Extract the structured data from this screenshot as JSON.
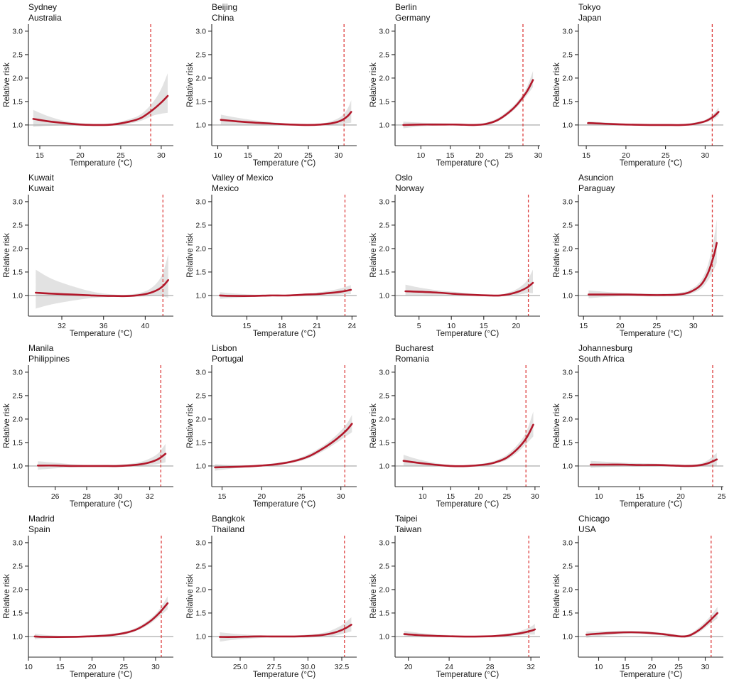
{
  "figure": {
    "ylabel": "Relative risk",
    "xlabel": "Temperature (°C)",
    "ytick_values": [
      1.0,
      1.5,
      2.0,
      2.5,
      3.0
    ],
    "ytick_labels": [
      "1.0",
      "1.5",
      "2.0",
      "2.5",
      "3.0"
    ],
    "ylim": [
      0.56,
      3.15
    ],
    "grid": "off",
    "legend": "none",
    "colors": {
      "curve": "#b2182b",
      "band": "#bfbfbf",
      "dashed_threshold": "#dd4040",
      "reference_line": "#b3b3b3",
      "axis": "#2b2b2b",
      "text": "#1a1a1a"
    }
  },
  "chart_data": [
    {
      "type": "line",
      "city": "Sydney",
      "country": "Australia",
      "xlabel": "Temperature (°C)",
      "ylabel": "Relative risk",
      "xlim": [
        13.6,
        31.5
      ],
      "xtick_values": [
        15,
        20,
        25,
        30
      ],
      "xtick_labels": [
        "15",
        "20",
        "25",
        "30"
      ],
      "dashed_line_x": 28.7,
      "x": [
        14.2,
        16,
        18,
        20,
        22,
        24,
        26,
        27.5,
        29,
        30,
        30.8
      ],
      "relative_risk": [
        1.13,
        1.08,
        1.04,
        1.01,
        1.0,
        1.01,
        1.07,
        1.15,
        1.33,
        1.48,
        1.62
      ],
      "ci_low": [
        0.96,
        0.98,
        0.99,
        0.98,
        0.98,
        0.99,
        1.03,
        1.09,
        1.2,
        1.24,
        1.26
      ],
      "ci_high": [
        1.32,
        1.19,
        1.09,
        1.04,
        1.02,
        1.04,
        1.12,
        1.23,
        1.49,
        1.77,
        2.1
      ]
    },
    {
      "type": "line",
      "city": "Beijing",
      "country": "China",
      "xlabel": "Temperature (°C)",
      "ylabel": "Relative risk",
      "xlim": [
        9.0,
        33.0
      ],
      "xtick_values": [
        10,
        15,
        20,
        25,
        30
      ],
      "xtick_labels": [
        "10",
        "15",
        "20",
        "25",
        "30"
      ],
      "dashed_line_x": 30.9,
      "x": [
        10.5,
        13,
        16,
        19,
        22,
        25,
        27,
        29,
        30.5,
        31.5,
        32.1
      ],
      "relative_risk": [
        1.11,
        1.08,
        1.05,
        1.03,
        1.01,
        1.0,
        1.01,
        1.04,
        1.1,
        1.19,
        1.28
      ],
      "ci_low": [
        1.01,
        1.01,
        1.01,
        1.0,
        0.99,
        0.99,
        0.99,
        1.0,
        1.02,
        1.04,
        1.05
      ],
      "ci_high": [
        1.22,
        1.16,
        1.1,
        1.06,
        1.03,
        1.02,
        1.03,
        1.09,
        1.19,
        1.35,
        1.53
      ]
    },
    {
      "type": "line",
      "city": "Berlin",
      "country": "Germany",
      "xlabel": "Temperature (°C)",
      "ylabel": "Relative risk",
      "xlim": [
        5.6,
        30.3
      ],
      "xtick_values": [
        10,
        15,
        20,
        25,
        30
      ],
      "xtick_labels": [
        "10",
        "15",
        "20",
        "25",
        "30"
      ],
      "dashed_line_x": 27.4,
      "x": [
        7,
        10,
        13,
        16,
        19,
        21,
        23,
        25,
        26.5,
        28,
        29.1
      ],
      "relative_risk": [
        1.0,
        1.01,
        1.01,
        1.01,
        1.0,
        1.02,
        1.1,
        1.27,
        1.45,
        1.7,
        1.96
      ],
      "ci_low": [
        0.93,
        0.97,
        0.99,
        0.99,
        0.98,
        1.0,
        1.07,
        1.23,
        1.4,
        1.62,
        1.81
      ],
      "ci_high": [
        1.07,
        1.05,
        1.04,
        1.03,
        1.02,
        1.05,
        1.14,
        1.32,
        1.51,
        1.79,
        2.15
      ]
    },
    {
      "type": "line",
      "city": "Tokyo",
      "country": "Japan",
      "xlabel": "Temperature (°C)",
      "ylabel": "Relative risk",
      "xlim": [
        14.0,
        32.3
      ],
      "xtick_values": [
        15,
        20,
        25,
        30
      ],
      "xtick_labels": [
        "15",
        "20",
        "25",
        "30"
      ],
      "dashed_line_x": 30.9,
      "x": [
        15.2,
        17,
        20,
        23,
        25,
        27,
        28.5,
        30,
        31,
        31.7
      ],
      "relative_risk": [
        1.04,
        1.03,
        1.01,
        1.0,
        1.0,
        1.0,
        1.02,
        1.08,
        1.17,
        1.28
      ],
      "ci_low": [
        1.01,
        1.0,
        0.99,
        0.99,
        0.98,
        0.99,
        1.0,
        1.05,
        1.12,
        1.2
      ],
      "ci_high": [
        1.08,
        1.06,
        1.03,
        1.02,
        1.01,
        1.02,
        1.05,
        1.11,
        1.23,
        1.37
      ]
    },
    {
      "type": "line",
      "city": "Kuwait",
      "country": "Kuwait",
      "xlabel": "Temperature (°C)",
      "ylabel": "Relative risk",
      "xlim": [
        28.8,
        42.7
      ],
      "xtick_values": [
        32,
        36,
        40
      ],
      "xtick_labels": [
        "32",
        "36",
        "40"
      ],
      "dashed_line_x": 41.7,
      "x": [
        29.5,
        31,
        33,
        35,
        37,
        38.5,
        40,
        41,
        41.7,
        42.2
      ],
      "relative_risk": [
        1.06,
        1.04,
        1.02,
        1.0,
        0.99,
        0.99,
        1.03,
        1.1,
        1.2,
        1.33
      ],
      "ci_low": [
        0.72,
        0.81,
        0.89,
        0.95,
        0.97,
        0.97,
        0.98,
        0.99,
        0.98,
        0.95
      ],
      "ci_high": [
        1.55,
        1.36,
        1.2,
        1.08,
        1.02,
        1.02,
        1.09,
        1.24,
        1.48,
        1.88
      ]
    },
    {
      "type": "line",
      "city": "Valley of Mexico",
      "country": "Mexico",
      "xlabel": "Temperature (°C)",
      "ylabel": "Relative risk",
      "xlim": [
        12.0,
        24.4
      ],
      "xtick_values": [
        15,
        18,
        21,
        24
      ],
      "xtick_labels": [
        "15",
        "18",
        "21",
        "24"
      ],
      "dashed_line_x": 23.4,
      "x": [
        12.7,
        14,
        15.5,
        17,
        18.5,
        20,
        21,
        22,
        23,
        23.9
      ],
      "relative_risk": [
        1.0,
        0.99,
        0.99,
        1.0,
        1.0,
        1.02,
        1.03,
        1.05,
        1.08,
        1.12
      ],
      "ci_low": [
        0.93,
        0.95,
        0.97,
        0.98,
        0.99,
        0.99,
        1.0,
        1.01,
        1.02,
        1.03
      ],
      "ci_high": [
        1.07,
        1.04,
        1.02,
        1.02,
        1.02,
        1.04,
        1.06,
        1.1,
        1.15,
        1.22
      ]
    },
    {
      "type": "line",
      "city": "Oslo",
      "country": "Norway",
      "xlabel": "Temperature (°C)",
      "ylabel": "Relative risk",
      "xlim": [
        1.3,
        23.7
      ],
      "xtick_values": [
        5,
        10,
        15,
        20
      ],
      "xtick_labels": [
        "5",
        "10",
        "15",
        "20"
      ],
      "dashed_line_x": 21.9,
      "x": [
        2.9,
        5,
        8,
        11,
        14,
        16,
        17.5,
        19,
        20.5,
        21.7,
        22.6
      ],
      "relative_risk": [
        1.09,
        1.08,
        1.06,
        1.03,
        1.01,
        1.0,
        1.0,
        1.03,
        1.09,
        1.17,
        1.27
      ],
      "ci_low": [
        0.99,
        1.0,
        1.01,
        1.0,
        0.99,
        0.98,
        0.98,
        1.0,
        1.02,
        1.05,
        1.05
      ],
      "ci_high": [
        1.23,
        1.17,
        1.11,
        1.07,
        1.03,
        1.02,
        1.02,
        1.07,
        1.17,
        1.32,
        1.55
      ]
    },
    {
      "type": "line",
      "city": "Asuncion",
      "country": "Paraguay",
      "xlabel": "Temperature (°C)",
      "ylabel": "Relative risk",
      "xlim": [
        14.3,
        34.1
      ],
      "xtick_values": [
        15,
        20,
        25,
        30
      ],
      "xtick_labels": [
        "15",
        "20",
        "25",
        "30"
      ],
      "dashed_line_x": 32.6,
      "x": [
        15.7,
        18,
        21,
        24,
        26,
        28,
        29.5,
        31,
        32,
        32.8,
        33.2
      ],
      "relative_risk": [
        1.02,
        1.02,
        1.02,
        1.01,
        1.01,
        1.02,
        1.07,
        1.22,
        1.48,
        1.85,
        2.12
      ],
      "ci_low": [
        0.94,
        0.97,
        0.99,
        0.98,
        0.98,
        0.99,
        1.03,
        1.14,
        1.32,
        1.55,
        1.7
      ],
      "ci_high": [
        1.11,
        1.08,
        1.05,
        1.04,
        1.04,
        1.06,
        1.12,
        1.31,
        1.66,
        2.2,
        2.62
      ]
    },
    {
      "type": "line",
      "city": "Manila",
      "country": "Philippines",
      "xlabel": "Temperature (°C)",
      "ylabel": "Relative risk",
      "xlim": [
        24.3,
        33.5
      ],
      "xtick_values": [
        26,
        28,
        30,
        32
      ],
      "xtick_labels": [
        "26",
        "28",
        "30",
        "32"
      ],
      "dashed_line_x": 32.7,
      "x": [
        24.9,
        26,
        27,
        28,
        29,
        30,
        31,
        31.8,
        32.5,
        33.0
      ],
      "relative_risk": [
        1.01,
        1.01,
        1.0,
        1.0,
        1.0,
        1.0,
        1.02,
        1.06,
        1.14,
        1.26
      ],
      "ci_low": [
        0.92,
        0.95,
        0.97,
        0.98,
        0.98,
        0.98,
        0.99,
        1.01,
        1.04,
        1.08
      ],
      "ci_high": [
        1.1,
        1.07,
        1.04,
        1.02,
        1.02,
        1.03,
        1.06,
        1.13,
        1.26,
        1.47
      ]
    },
    {
      "type": "line",
      "city": "Lisbon",
      "country": "Portugal",
      "xlabel": "Temperature (°C)",
      "ylabel": "Relative risk",
      "xlim": [
        13.7,
        32.0
      ],
      "xtick_values": [
        15,
        20,
        25,
        30
      ],
      "xtick_labels": [
        "15",
        "20",
        "25",
        "30"
      ],
      "dashed_line_x": 30.5,
      "x": [
        14.1,
        16,
        18,
        20,
        22,
        24,
        26,
        28,
        29.5,
        30.7,
        31.4
      ],
      "relative_risk": [
        0.97,
        0.98,
        0.99,
        1.01,
        1.04,
        1.1,
        1.21,
        1.4,
        1.58,
        1.76,
        1.9
      ],
      "ci_low": [
        0.9,
        0.94,
        0.97,
        0.99,
        1.02,
        1.07,
        1.17,
        1.34,
        1.5,
        1.64,
        1.72
      ],
      "ci_high": [
        1.04,
        1.02,
        1.02,
        1.03,
        1.07,
        1.13,
        1.26,
        1.46,
        1.67,
        1.89,
        2.09
      ]
    },
    {
      "type": "line",
      "city": "Bucharest",
      "country": "Romania",
      "xlabel": "Temperature (°C)",
      "ylabel": "Relative risk",
      "xlim": [
        5.1,
        30.9
      ],
      "xtick_values": [
        10,
        15,
        20,
        25,
        30
      ],
      "xtick_labels": [
        "10",
        "15",
        "20",
        "25",
        "30"
      ],
      "dashed_line_x": 28.4,
      "x": [
        6.6,
        9,
        12,
        15,
        18,
        21,
        23,
        25,
        27,
        28.5,
        29.7
      ],
      "relative_risk": [
        1.11,
        1.07,
        1.03,
        1.0,
        1.0,
        1.03,
        1.08,
        1.18,
        1.38,
        1.6,
        1.88
      ],
      "ci_low": [
        1.0,
        1.0,
        1.0,
        0.98,
        0.98,
        1.0,
        1.05,
        1.13,
        1.3,
        1.48,
        1.63
      ],
      "ci_high": [
        1.24,
        1.15,
        1.07,
        1.02,
        1.02,
        1.06,
        1.12,
        1.24,
        1.47,
        1.74,
        2.16
      ]
    },
    {
      "type": "line",
      "city": "Johannesburg",
      "country": "South Africa",
      "xlabel": "Temperature (°C)",
      "ylabel": "Relative risk",
      "xlim": [
        7.5,
        25.2
      ],
      "xtick_values": [
        10,
        15,
        20,
        25
      ],
      "xtick_labels": [
        "10",
        "15",
        "20",
        "25"
      ],
      "dashed_line_x": 23.9,
      "x": [
        9.0,
        11,
        13,
        15,
        17,
        19,
        20.5,
        22,
        23.2,
        24.4
      ],
      "relative_risk": [
        1.03,
        1.03,
        1.03,
        1.02,
        1.02,
        1.01,
        1.0,
        1.01,
        1.05,
        1.14
      ],
      "ci_low": [
        0.96,
        0.98,
        0.99,
        0.99,
        0.99,
        0.99,
        0.98,
        0.98,
        1.0,
        1.01
      ],
      "ci_high": [
        1.11,
        1.09,
        1.07,
        1.06,
        1.05,
        1.04,
        1.03,
        1.04,
        1.11,
        1.28
      ]
    },
    {
      "type": "line",
      "city": "Madrid",
      "country": "Spain",
      "xlabel": "Temperature (°C)",
      "ylabel": "Relative risk",
      "xlim": [
        10.0,
        32.8
      ],
      "xtick_values": [
        10,
        15,
        20,
        25,
        30
      ],
      "xtick_labels": [
        "10",
        "15",
        "20",
        "25",
        "30"
      ],
      "dashed_line_x": 30.9,
      "x": [
        11.0,
        13,
        16,
        19,
        21,
        23,
        25,
        27,
        29,
        30.5,
        31.9
      ],
      "relative_risk": [
        1.0,
        0.99,
        0.99,
        1.0,
        1.01,
        1.03,
        1.07,
        1.15,
        1.31,
        1.49,
        1.71
      ],
      "ci_low": [
        0.94,
        0.96,
        0.97,
        0.98,
        0.99,
        1.01,
        1.04,
        1.12,
        1.26,
        1.42,
        1.58
      ],
      "ci_high": [
        1.06,
        1.03,
        1.01,
        1.02,
        1.04,
        1.06,
        1.1,
        1.19,
        1.36,
        1.56,
        1.86
      ]
    },
    {
      "type": "line",
      "city": "Bangkok",
      "country": "Thailand",
      "xlabel": "Temperature (°C)",
      "ylabel": "Relative risk",
      "xlim": [
        22.9,
        33.6
      ],
      "xtick_values": [
        25.0,
        27.5,
        30.0,
        32.5
      ],
      "xtick_labels": [
        "25.0",
        "27.5",
        "30.0",
        "32.5"
      ],
      "dashed_line_x": 32.7,
      "x": [
        23.5,
        24.5,
        26,
        27.5,
        29,
        30,
        31,
        31.8,
        32.6,
        33.2
      ],
      "relative_risk": [
        0.99,
        0.99,
        1.0,
        1.0,
        1.0,
        1.01,
        1.03,
        1.07,
        1.15,
        1.25
      ],
      "ci_low": [
        0.89,
        0.93,
        0.96,
        0.98,
        0.98,
        0.98,
        0.99,
        1.01,
        1.06,
        1.11
      ],
      "ci_high": [
        1.09,
        1.06,
        1.03,
        1.02,
        1.02,
        1.04,
        1.07,
        1.14,
        1.26,
        1.41
      ]
    },
    {
      "type": "line",
      "city": "Taipei",
      "country": "Taiwan",
      "xlabel": "Temperature (°C)",
      "ylabel": "Relative risk",
      "xlim": [
        18.7,
        32.9
      ],
      "xtick_values": [
        20,
        24,
        28,
        32
      ],
      "xtick_labels": [
        "20",
        "24",
        "28",
        "32"
      ],
      "dashed_line_x": 31.8,
      "x": [
        19.6,
        21,
        23,
        25,
        27,
        28.5,
        30,
        31,
        32,
        32.4
      ],
      "relative_risk": [
        1.05,
        1.03,
        1.01,
        1.0,
        1.0,
        1.01,
        1.04,
        1.07,
        1.12,
        1.15
      ],
      "ci_low": [
        0.99,
        0.99,
        0.99,
        0.99,
        0.99,
        0.99,
        1.01,
        1.03,
        1.04,
        1.04
      ],
      "ci_high": [
        1.12,
        1.08,
        1.04,
        1.02,
        1.01,
        1.03,
        1.07,
        1.12,
        1.21,
        1.27
      ]
    },
    {
      "type": "line",
      "city": "Chicago",
      "country": "USA",
      "xlabel": "Temperature (°C)",
      "ylabel": "Relative risk",
      "xlim": [
        6.2,
        33.4
      ],
      "xtick_values": [
        10,
        15,
        20,
        25,
        30
      ],
      "xtick_labels": [
        "10",
        "15",
        "20",
        "25",
        "30"
      ],
      "dashed_line_x": 31.1,
      "x": [
        7.7,
        10,
        13,
        16,
        19,
        22,
        24,
        25.5,
        27,
        29,
        30.7,
        32.3
      ],
      "relative_risk": [
        1.04,
        1.06,
        1.08,
        1.09,
        1.08,
        1.05,
        1.02,
        1.0,
        1.02,
        1.15,
        1.32,
        1.5
      ],
      "ci_low": [
        0.97,
        1.01,
        1.04,
        1.06,
        1.05,
        1.02,
        0.99,
        0.98,
        0.99,
        1.1,
        1.25,
        1.39
      ],
      "ci_high": [
        1.11,
        1.11,
        1.12,
        1.12,
        1.11,
        1.08,
        1.05,
        1.03,
        1.05,
        1.21,
        1.4,
        1.63
      ]
    }
  ]
}
